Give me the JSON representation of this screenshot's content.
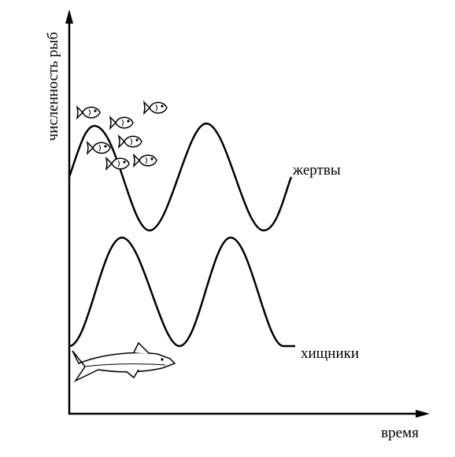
{
  "axes": {
    "y_label": "численность рыб",
    "x_label": "время"
  },
  "curves": [
    {
      "label": "жертвы"
    },
    {
      "label": "хищники"
    }
  ]
}
